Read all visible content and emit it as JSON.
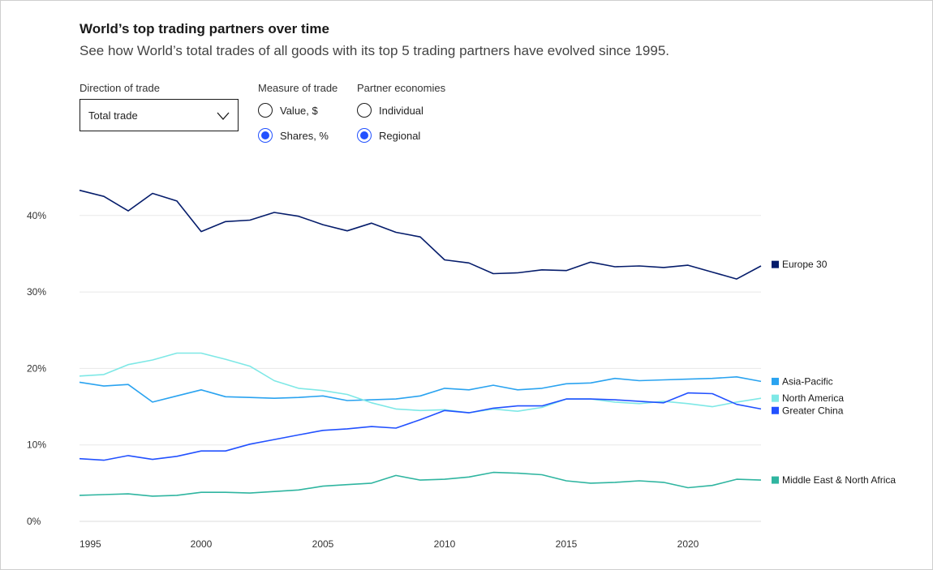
{
  "header": {
    "title": "World’s top trading partners over time",
    "subtitle": "See how World’s total trades of all goods with its top 5 trading partners have evolved since 1995."
  },
  "controls": {
    "direction": {
      "label": "Direction of trade",
      "value": "Total trade"
    },
    "measure": {
      "label": "Measure of trade",
      "options": [
        {
          "label": "Value, $",
          "checked": false
        },
        {
          "label": "Shares, %",
          "checked": true
        }
      ]
    },
    "partners": {
      "label": "Partner economies",
      "options": [
        {
          "label": "Individual",
          "checked": false
        },
        {
          "label": "Regional",
          "checked": true
        }
      ]
    }
  },
  "chart_data": {
    "type": "line",
    "title": "",
    "xlabel": "",
    "ylabel": "",
    "x": [
      1995,
      1996,
      1997,
      1998,
      1999,
      2000,
      2001,
      2002,
      2003,
      2004,
      2005,
      2006,
      2007,
      2008,
      2009,
      2010,
      2011,
      2012,
      2013,
      2014,
      2015,
      2016,
      2017,
      2018,
      2019,
      2020,
      2021,
      2022,
      2023
    ],
    "xticks": [
      "1995",
      "2000",
      "2005",
      "2010",
      "2015",
      "2020"
    ],
    "yticks": [
      "0%",
      "10%",
      "20%",
      "30%",
      "40%"
    ],
    "ylim": [
      0,
      45
    ],
    "grid": true,
    "legend": "right, end of lines",
    "series": [
      {
        "name": "Europe 30",
        "color": "#051c6b",
        "values": [
          43.3,
          42.5,
          40.6,
          42.9,
          41.9,
          37.9,
          39.2,
          39.4,
          40.4,
          39.9,
          38.8,
          38.0,
          39.0,
          37.8,
          37.2,
          34.2,
          33.8,
          32.4,
          32.5,
          32.9,
          32.8,
          33.9,
          33.3,
          33.4,
          33.2,
          33.5,
          32.6,
          31.7,
          33.4
        ],
        "legend_y": 33.6
      },
      {
        "name": "Asia-Pacific",
        "color": "#2aa3f0",
        "values": [
          18.2,
          17.7,
          17.9,
          15.6,
          16.4,
          17.2,
          16.3,
          16.2,
          16.1,
          16.2,
          16.4,
          15.8,
          15.9,
          16.0,
          16.4,
          17.4,
          17.2,
          17.8,
          17.2,
          17.4,
          18.0,
          18.1,
          18.7,
          18.4,
          18.5,
          18.6,
          18.7,
          18.9,
          18.3
        ],
        "legend_y": 18.3
      },
      {
        "name": "North America",
        "color": "#7ee8e6",
        "values": [
          19.0,
          19.2,
          20.5,
          21.1,
          22.0,
          22.0,
          21.2,
          20.3,
          18.4,
          17.4,
          17.1,
          16.6,
          15.5,
          14.7,
          14.5,
          14.6,
          14.2,
          14.7,
          14.4,
          14.9,
          16.0,
          16.0,
          15.6,
          15.4,
          15.7,
          15.4,
          15.0,
          15.6,
          16.1
        ],
        "legend_y": 16.1
      },
      {
        "name": "Greater China",
        "color": "#2251ff",
        "values": [
          8.2,
          8.0,
          8.6,
          8.1,
          8.5,
          9.2,
          9.2,
          10.1,
          10.7,
          11.3,
          11.9,
          12.1,
          12.4,
          12.2,
          13.3,
          14.5,
          14.2,
          14.8,
          15.1,
          15.1,
          16.0,
          16.0,
          15.9,
          15.7,
          15.5,
          16.8,
          16.7,
          15.3,
          14.7
        ],
        "legend_y": 14.5
      },
      {
        "name": "Middle East & North Africa",
        "color": "#2fb5a0",
        "values": [
          3.4,
          3.5,
          3.6,
          3.3,
          3.4,
          3.8,
          3.8,
          3.7,
          3.9,
          4.1,
          4.6,
          4.8,
          5.0,
          6.0,
          5.4,
          5.5,
          5.8,
          6.4,
          6.3,
          6.1,
          5.3,
          5.0,
          5.1,
          5.3,
          5.1,
          4.4,
          4.7,
          5.5,
          5.4
        ],
        "legend_y": 5.4
      }
    ]
  }
}
